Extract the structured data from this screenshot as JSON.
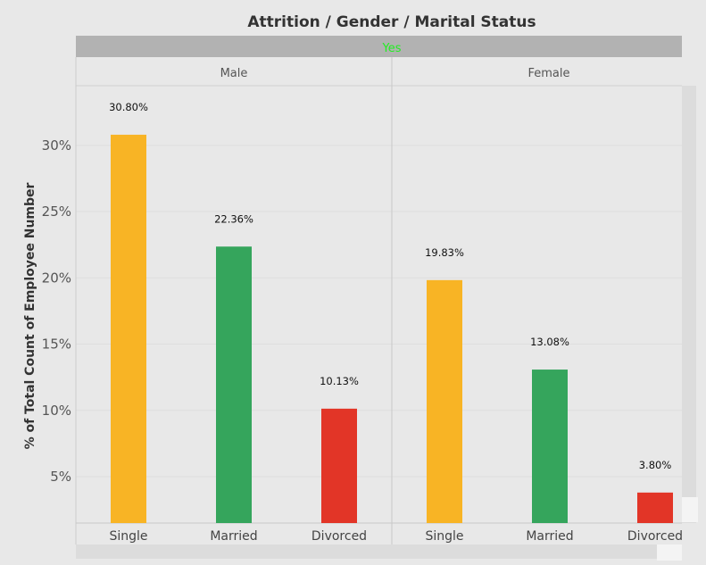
{
  "chart_data": {
    "type": "bar",
    "title": "Attrition / Gender / Marital Status",
    "column_header": "Yes",
    "ylabel": "% of Total Count of Employee Number",
    "yticks": [
      "5%",
      "10%",
      "15%",
      "20%",
      "25%",
      "30%"
    ],
    "ytick_values": [
      5,
      10,
      15,
      20,
      25,
      30
    ],
    "ylim": [
      1.5,
      34.5
    ],
    "grid": true,
    "categories": [
      "Single",
      "Married",
      "Divorced"
    ],
    "panels": [
      {
        "name": "Male",
        "values": [
          30.8,
          22.36,
          10.13
        ],
        "labels": [
          "30.80%",
          "22.36%",
          "10.13%"
        ]
      },
      {
        "name": "Female",
        "values": [
          19.83,
          13.08,
          3.8
        ],
        "labels": [
          "19.83%",
          "13.08%",
          "3.80%"
        ]
      }
    ],
    "colors": {
      "Single": "#f8b425",
      "Married": "#35a55c",
      "Divorced": "#e23527",
      "header_text": "#22ee22"
    }
  }
}
